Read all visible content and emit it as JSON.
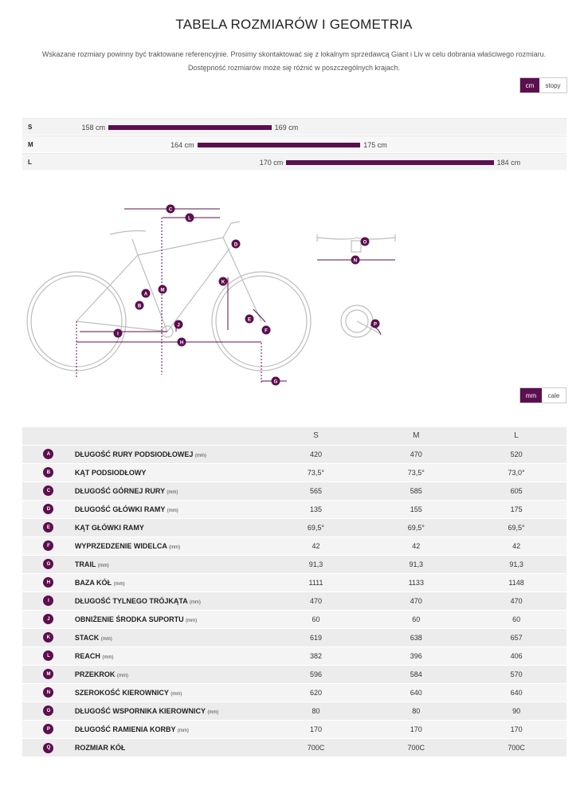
{
  "header": {
    "title": "TABELA ROZMIARÓW I GEOMETRIA",
    "intro_line1": "Wskazane rozmiary powinny być traktowane referencyjnie. Prosimy skontaktować się z lokalnym sprzedawcą Giant i Liv w celu dobrania właściwego rozmiaru.",
    "intro_line2": "Dostępność rozmiarów może się różnić w poszczególnych krajach."
  },
  "height_units": {
    "active": "cm",
    "other": "stopy"
  },
  "geometry_units": {
    "active": "mm",
    "other": "cale"
  },
  "size_chart": [
    {
      "size": "S",
      "min": "158 cm",
      "max": "169 cm",
      "min_cm": 158,
      "max_cm": 169
    },
    {
      "size": "M",
      "min": "164 cm",
      "max": "175 cm",
      "min_cm": 164,
      "max_cm": 175
    },
    {
      "size": "L",
      "min": "170 cm",
      "max": "184 cm",
      "min_cm": 170,
      "max_cm": 184
    }
  ],
  "diagram_labels": [
    "A",
    "B",
    "C",
    "D",
    "E",
    "F",
    "G",
    "H",
    "I",
    "J",
    "K",
    "L",
    "M",
    "N",
    "O",
    "P"
  ],
  "table": {
    "columns": [
      "S",
      "M",
      "L"
    ],
    "rows": [
      {
        "key": "A",
        "name": "DŁUGOŚĆ RURY PODSIODŁOWEJ",
        "unit": "(mm)",
        "values": [
          "420",
          "470",
          "520"
        ]
      },
      {
        "key": "B",
        "name": "KĄT PODSIODŁOWY",
        "unit": "",
        "values": [
          "73,5°",
          "73,5°",
          "73,0°"
        ]
      },
      {
        "key": "C",
        "name": "DŁUGOŚĆ GÓRNEJ RURY",
        "unit": "(mm)",
        "values": [
          "565",
          "585",
          "605"
        ]
      },
      {
        "key": "D",
        "name": "DŁUGOŚĆ GŁÓWKI RAMY",
        "unit": "(mm)",
        "values": [
          "135",
          "155",
          "175"
        ]
      },
      {
        "key": "E",
        "name": "KĄT GŁÓWKI RAMY",
        "unit": "",
        "values": [
          "69,5°",
          "69,5°",
          "69,5°"
        ]
      },
      {
        "key": "F",
        "name": "WYPRZEDZENIE WIDELCA",
        "unit": "(mm)",
        "values": [
          "42",
          "42",
          "42"
        ]
      },
      {
        "key": "G",
        "name": "TRAIL",
        "unit": "(mm)",
        "values": [
          "91,3",
          "91,3",
          "91,3"
        ]
      },
      {
        "key": "H",
        "name": "BAZA KÓŁ",
        "unit": "(mm)",
        "values": [
          "1111",
          "1133",
          "1148"
        ]
      },
      {
        "key": "I",
        "name": "DŁUGOŚĆ TYLNEGO TRÓJKĄTA",
        "unit": "(mm)",
        "values": [
          "470",
          "470",
          "470"
        ]
      },
      {
        "key": "J",
        "name": "OBNIŻENIE ŚRODKA SUPORTU",
        "unit": "(mm)",
        "values": [
          "60",
          "60",
          "60"
        ]
      },
      {
        "key": "K",
        "name": "STACK",
        "unit": "(mm)",
        "values": [
          "619",
          "638",
          "657"
        ]
      },
      {
        "key": "L",
        "name": "REACH",
        "unit": "(mm)",
        "values": [
          "382",
          "396",
          "406"
        ]
      },
      {
        "key": "M",
        "name": "PRZEKROK",
        "unit": "(mm)",
        "values": [
          "596",
          "584",
          "570"
        ]
      },
      {
        "key": "N",
        "name": "SZEROKOŚĆ KIEROWNICY",
        "unit": "(mm)",
        "values": [
          "620",
          "640",
          "640"
        ]
      },
      {
        "key": "O",
        "name": "DŁUGOŚĆ WSPORNIKA KIEROWNICY",
        "unit": "(mm)",
        "values": [
          "80",
          "80",
          "90"
        ]
      },
      {
        "key": "P",
        "name": "DŁUGOŚĆ RAMIENIA KORBY",
        "unit": "(mm)",
        "values": [
          "170",
          "170",
          "170"
        ]
      },
      {
        "key": "Q",
        "name": "ROZMIAR KÓŁ",
        "unit": "",
        "values": [
          "700C",
          "700C",
          "700C"
        ]
      }
    ]
  },
  "colors": {
    "accent": "#5c0f4e",
    "row_dark": "#ececec",
    "row_light": "#f4f4f4"
  }
}
